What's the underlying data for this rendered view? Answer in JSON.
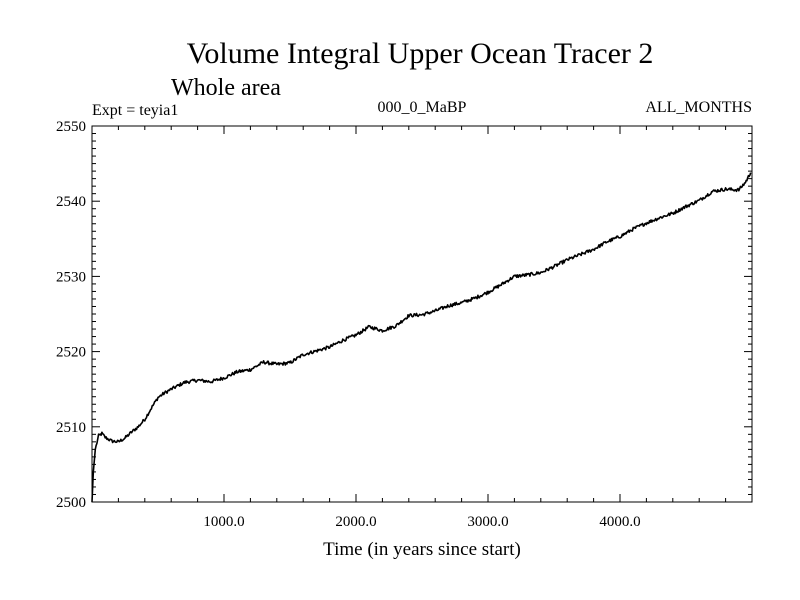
{
  "chart_data": {
    "type": "line",
    "title": "Volume Integral Upper Ocean Tracer 2",
    "subtitle": "Whole area",
    "expt_label": "Expt = teyia1",
    "period_label": "000_0_MaBP",
    "months_label": "ALL_MONTHS",
    "xlabel": "Time (in years since start)",
    "ylabel": "",
    "xlim": [
      0,
      5000
    ],
    "ylim": [
      2500,
      2550
    ],
    "x_ticks": [
      1000,
      2000,
      3000,
      4000
    ],
    "x_tick_labels": [
      "1000.0",
      "2000.0",
      "3000.0",
      "4000.0"
    ],
    "y_ticks": [
      2500,
      2510,
      2520,
      2530,
      2540,
      2550
    ],
    "y_tick_labels": [
      "2500",
      "2510",
      "2520",
      "2530",
      "2540",
      "2550"
    ],
    "grid": false,
    "series": [
      {
        "name": "teyia1",
        "color": "#000000",
        "x": [
          0,
          10,
          25,
          50,
          75,
          100,
          150,
          200,
          250,
          300,
          350,
          400,
          450,
          500,
          550,
          600,
          700,
          800,
          900,
          1000,
          1100,
          1200,
          1300,
          1400,
          1500,
          1600,
          1700,
          1800,
          1900,
          2000,
          2100,
          2200,
          2300,
          2400,
          2500,
          2600,
          2700,
          2800,
          2900,
          3000,
          3100,
          3200,
          3300,
          3400,
          3500,
          3600,
          3700,
          3800,
          3900,
          4000,
          4100,
          4200,
          4300,
          4400,
          4500,
          4600,
          4700,
          4800,
          4900,
          4950,
          4990
        ],
        "y": [
          2500,
          2504,
          2507,
          2508.8,
          2509.1,
          2508.6,
          2508.1,
          2508.0,
          2508.5,
          2509.3,
          2510.0,
          2511.0,
          2512.5,
          2513.9,
          2514.5,
          2515.0,
          2515.9,
          2516.2,
          2516.0,
          2516.5,
          2517.3,
          2517.6,
          2518.6,
          2518.3,
          2518.5,
          2519.6,
          2520.1,
          2520.6,
          2521.5,
          2522.2,
          2523.3,
          2522.8,
          2523.4,
          2524.8,
          2524.9,
          2525.4,
          2526.1,
          2526.5,
          2527.1,
          2527.9,
          2528.9,
          2530.0,
          2530.2,
          2530.5,
          2531.3,
          2532.2,
          2532.9,
          2533.6,
          2534.6,
          2535.3,
          2536.3,
          2537.1,
          2537.8,
          2538.4,
          2539.3,
          2540.1,
          2541.3,
          2541.6,
          2541.5,
          2542.5,
          2543.8
        ]
      }
    ]
  }
}
